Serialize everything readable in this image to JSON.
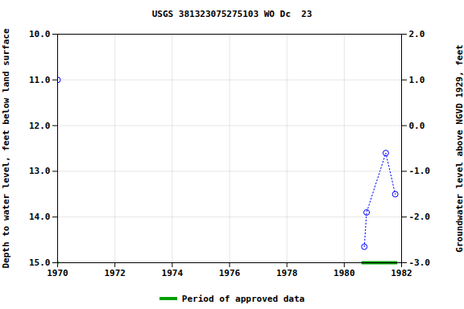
{
  "chart_data": {
    "type": "line",
    "title": "USGS 381323075275103 WO Dc  23",
    "y_label": "Depth to water level, feet below land surface",
    "y2_label": "Groundwater level above NGVD 1929, feet",
    "x": [
      1970.0,
      1975.0,
      1980.7,
      1980.78,
      1981.45,
      1981.78
    ],
    "series": [
      {
        "color": "#0000ff",
        "marker": "circle",
        "line_style": "dotted",
        "values": [
          11.0,
          null,
          14.65,
          13.9,
          12.6,
          13.5
        ]
      }
    ],
    "xlim": [
      1970,
      1982
    ],
    "xticks": [
      1970,
      1972,
      1974,
      1976,
      1978,
      1980,
      1982
    ],
    "ylim": [
      15,
      10
    ],
    "yticks": [
      {
        "value": 10,
        "label": "10.0"
      },
      {
        "value": 11,
        "label": "11.0"
      },
      {
        "value": 12,
        "label": "12.0"
      },
      {
        "value": 13,
        "label": "13.0"
      },
      {
        "value": 14,
        "label": "14.0"
      },
      {
        "value": 15,
        "label": "15.0"
      }
    ],
    "y2lim": [
      -3,
      2
    ],
    "y2ticks": [
      {
        "value": 2,
        "label": "2.0"
      },
      {
        "value": 1,
        "label": "1.0"
      },
      {
        "value": 0,
        "label": "0.0"
      },
      {
        "value": -1,
        "label": "-1.0"
      },
      {
        "value": -2,
        "label": "-2.0"
      },
      {
        "value": -3,
        "label": "-3.0"
      }
    ],
    "grid": true,
    "legend": "bottom",
    "approved_periods": {
      "name": "Period of approved data",
      "color": "#00a000",
      "periods": [
        [
          1970.0,
          1970.03
        ],
        [
          1980.6,
          1981.85
        ]
      ]
    }
  }
}
